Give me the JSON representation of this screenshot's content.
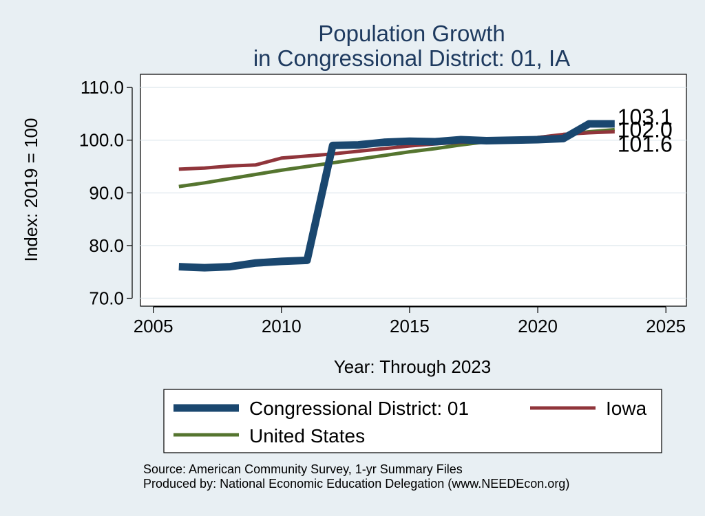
{
  "chart_data": {
    "type": "line",
    "title": [
      "Population Growth",
      "in Congressional District: 01, IA"
    ],
    "xlabel": "Year: Through 2023",
    "ylabel": "Index: 2019 = 100",
    "xlim": [
      2004.5,
      2025.8
    ],
    "ylim": [
      68.5,
      112.5
    ],
    "xticks": [
      2005,
      2010,
      2015,
      2020,
      2025
    ],
    "yticks": [
      70,
      80,
      90,
      100,
      110
    ],
    "ytick_labels": [
      "70.0",
      "80.0",
      "90.0",
      "100.0",
      "110.0"
    ],
    "grid": true,
    "legend_placement": "bottom",
    "series": [
      {
        "name": "Congressional District: 01",
        "color": "#1a476f",
        "x": [
          2006,
          2007,
          2008,
          2009,
          2010,
          2011,
          2012,
          2013,
          2014,
          2015,
          2016,
          2017,
          2018,
          2019,
          2020,
          2021,
          2022,
          2023
        ],
        "values": [
          76.0,
          75.8,
          76.0,
          76.7,
          77.0,
          77.2,
          99.0,
          99.1,
          99.6,
          99.8,
          99.7,
          100.1,
          99.9,
          100.0,
          100.1,
          100.3,
          103.1,
          103.1
        ],
        "end_label": "103.1"
      },
      {
        "name": "Iowa",
        "color": "#90353b",
        "x": [
          2006,
          2007,
          2008,
          2009,
          2010,
          2011,
          2012,
          2013,
          2014,
          2015,
          2016,
          2017,
          2018,
          2019,
          2020,
          2021,
          2022,
          2023
        ],
        "values": [
          94.5,
          94.7,
          95.1,
          95.3,
          96.6,
          97.0,
          97.4,
          97.9,
          98.4,
          98.9,
          99.3,
          99.6,
          99.9,
          100.0,
          100.5,
          101.1,
          101.4,
          101.6
        ],
        "end_label": "101.6"
      },
      {
        "name": "United States",
        "color": "#55752f",
        "x": [
          2006,
          2007,
          2008,
          2009,
          2010,
          2011,
          2012,
          2013,
          2014,
          2015,
          2016,
          2017,
          2018,
          2019,
          2020,
          2021,
          2022,
          2023
        ],
        "values": [
          91.2,
          91.9,
          92.7,
          93.5,
          94.3,
          95.0,
          95.7,
          96.4,
          97.1,
          97.8,
          98.4,
          99.1,
          99.7,
          100.0,
          100.5,
          101.0,
          101.6,
          102.0
        ],
        "end_label": "102.0"
      }
    ]
  },
  "source": {
    "line1": "Source: American Community Survey, 1-yr Summary Files",
    "line2": "Produced by: National Economic Education Delegation (www.NEEDEcon.org)"
  }
}
